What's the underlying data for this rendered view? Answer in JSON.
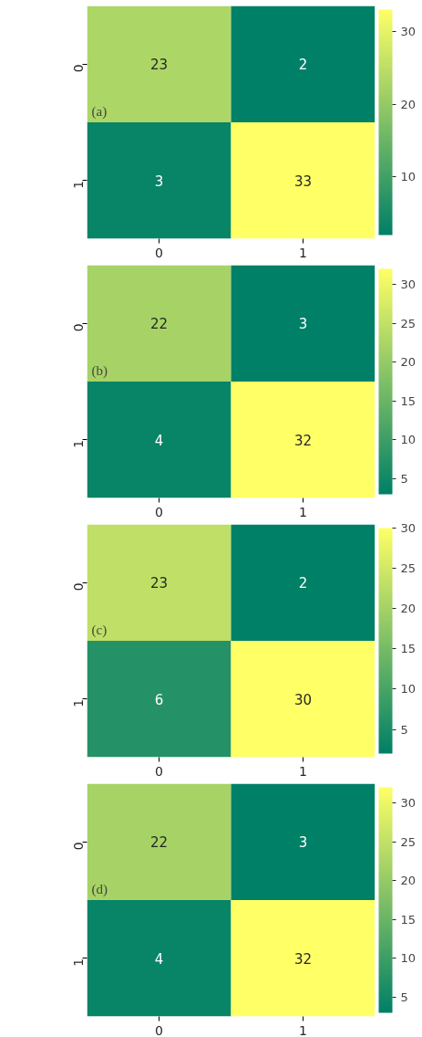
{
  "chart_data": [
    {
      "type": "heatmap",
      "title": "(a)",
      "categories": [
        "0",
        "1"
      ],
      "y_categories": [
        "0",
        "1"
      ],
      "cells": [
        [
          23,
          2
        ],
        [
          3,
          33
        ]
      ],
      "clim": [
        2,
        33
      ],
      "cticks": [
        10,
        20,
        30
      ],
      "data_labels": true
    },
    {
      "type": "heatmap",
      "title": "(b)",
      "categories": [
        "0",
        "1"
      ],
      "y_categories": [
        "0",
        "1"
      ],
      "cells": [
        [
          22,
          3
        ],
        [
          4,
          32
        ]
      ],
      "clim": [
        3,
        32
      ],
      "cticks": [
        5,
        10,
        15,
        20,
        25,
        30
      ],
      "data_labels": true
    },
    {
      "type": "heatmap",
      "title": "(c)",
      "categories": [
        "0",
        "1"
      ],
      "y_categories": [
        "0",
        "1"
      ],
      "cells": [
        [
          23,
          2
        ],
        [
          6,
          30
        ]
      ],
      "clim": [
        2,
        30
      ],
      "cticks": [
        5,
        10,
        15,
        20,
        25,
        30
      ],
      "data_labels": true
    },
    {
      "type": "heatmap",
      "title": "(d)",
      "categories": [
        "0",
        "1"
      ],
      "y_categories": [
        "0",
        "1"
      ],
      "cells": [
        [
          22,
          3
        ],
        [
          4,
          32
        ]
      ],
      "clim": [
        3,
        32
      ],
      "cticks": [
        5,
        10,
        15,
        20,
        25,
        30
      ],
      "data_labels": true
    }
  ]
}
